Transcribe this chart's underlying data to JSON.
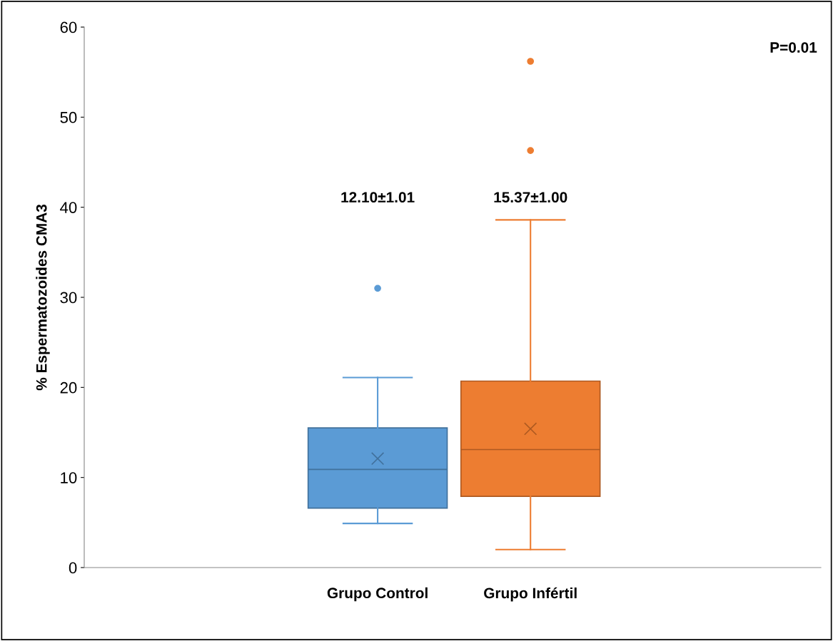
{
  "chart_data": {
    "type": "box",
    "ylabel": "% Espermatozoides CMA3",
    "categories": [
      "Grupo Control",
      "Grupo Infértil"
    ],
    "colors": [
      "#5b9bd5",
      "#ed7d31"
    ],
    "boxes": [
      {
        "low": 4.9,
        "q1": 6.6,
        "median": 10.9,
        "q3": 15.5,
        "high": 21.1,
        "mean": 12.1,
        "outliers": [
          31.0
        ]
      },
      {
        "low": 2.0,
        "q1": 7.9,
        "median": 13.1,
        "q3": 20.7,
        "high": 38.6,
        "mean": 15.4,
        "outliers": [
          46.3,
          56.2
        ]
      }
    ],
    "ylim": [
      0,
      60
    ],
    "yticks": [
      0,
      10,
      20,
      30,
      40,
      50,
      60
    ],
    "grid": false,
    "legend": false,
    "annotations": [
      "12.10±1.01",
      "15.37±1.00",
      "P=0.01"
    ]
  }
}
